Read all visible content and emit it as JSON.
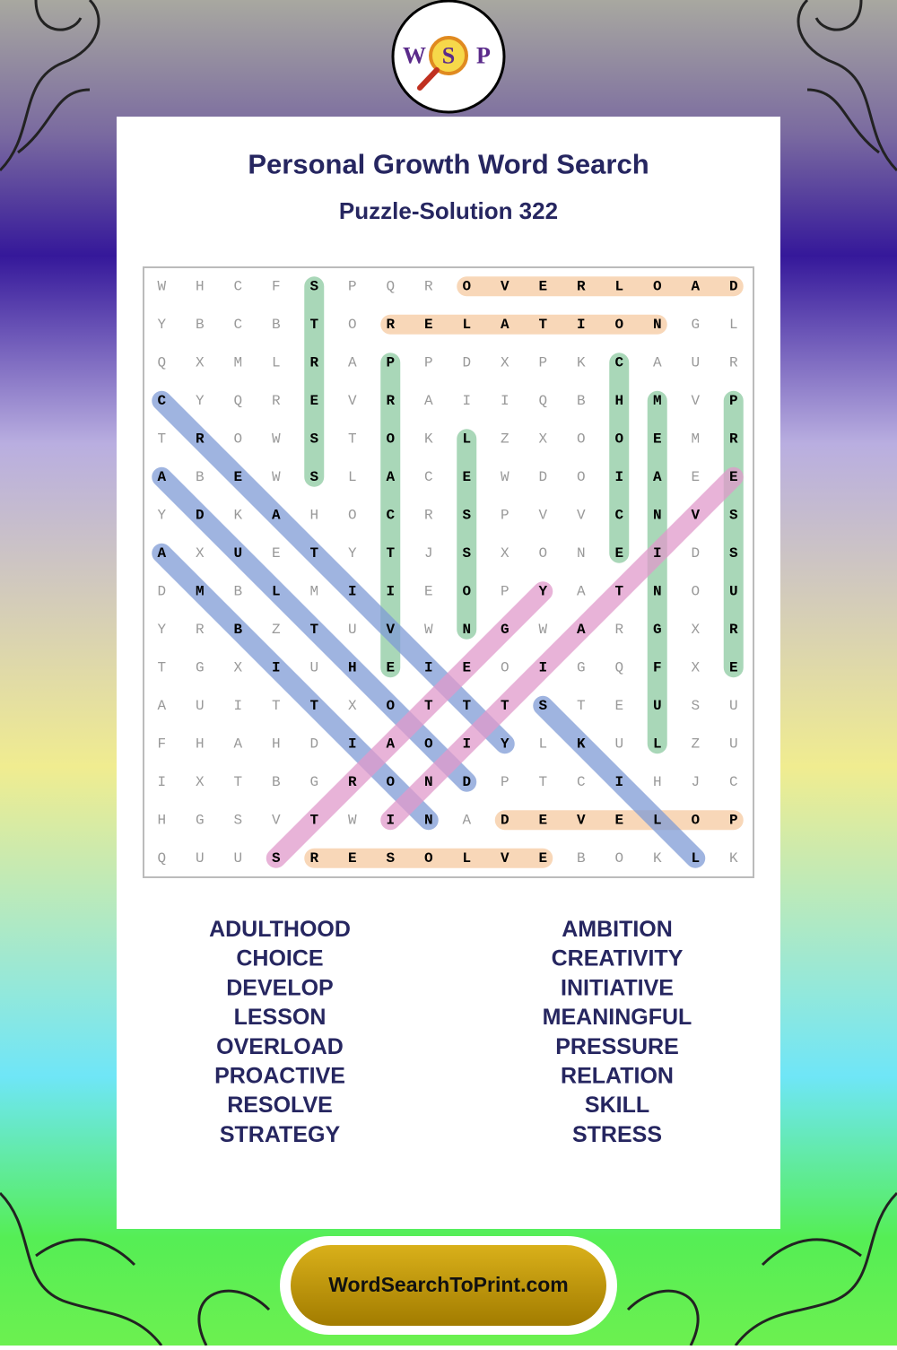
{
  "header": {
    "logo": [
      "W",
      "S",
      "P"
    ],
    "title": "Personal Growth Word Search",
    "subtitle": "Puzzle-Solution 322"
  },
  "grid": {
    "rows": [
      "WHCFSPQROVERLOAD",
      "YBCBTORELATIONGL",
      "QXMLRAPPDXPKCAUR",
      "CYQREVRAIIQBHMVP",
      "TROWSTOKLZXOOEMR",
      "ABEWSLACEWDOIAEE",
      "YDKAHOCRSPVVCNVS",
      "AXUETYTJSXONEIDS",
      "DMBLMIIEOPYATNOU",
      "YRBZTUVWNGWARGXR",
      "TGXIUHEIEOIGQFXE",
      "AUITTXOTTTSTEUSU",
      "FHAHDIAOIYLKULZU",
      "IXTBGRONDPTCIHJC",
      "HGSVTWINADEVELOP",
      "QUUSRESOLVEBOKLK"
    ],
    "highlights": [
      {
        "start": [
          0,
          8
        ],
        "end": [
          0,
          15
        ],
        "color": "#f6c9a0"
      },
      {
        "start": [
          1,
          6
        ],
        "end": [
          1,
          13
        ],
        "color": "#f6c9a0"
      },
      {
        "start": [
          14,
          9
        ],
        "end": [
          14,
          15
        ],
        "color": "#f6c9a0"
      },
      {
        "start": [
          15,
          4
        ],
        "end": [
          15,
          10
        ],
        "color": "#f6c9a0"
      },
      {
        "start": [
          0,
          4
        ],
        "end": [
          5,
          4
        ],
        "color": "#8cc9a0"
      },
      {
        "start": [
          2,
          6
        ],
        "end": [
          10,
          6
        ],
        "color": "#8cc9a0"
      },
      {
        "start": [
          4,
          8
        ],
        "end": [
          9,
          8
        ],
        "color": "#8cc9a0"
      },
      {
        "start": [
          2,
          12
        ],
        "end": [
          7,
          12
        ],
        "color": "#8cc9a0"
      },
      {
        "start": [
          3,
          13
        ],
        "end": [
          12,
          13
        ],
        "color": "#8cc9a0"
      },
      {
        "start": [
          3,
          15
        ],
        "end": [
          10,
          15
        ],
        "color": "#8cc9a0"
      },
      {
        "start": [
          5,
          0
        ],
        "end": [
          13,
          8
        ],
        "color": "#7f9bd6"
      },
      {
        "start": [
          3,
          0
        ],
        "end": [
          12,
          9
        ],
        "color": "#7f9bd6"
      },
      {
        "start": [
          7,
          0
        ],
        "end": [
          14,
          7
        ],
        "color": "#7f9bd6"
      },
      {
        "start": [
          11,
          10
        ],
        "end": [
          15,
          14
        ],
        "color": "#7f9bd6"
      },
      {
        "start": [
          15,
          3
        ],
        "end": [
          8,
          10
        ],
        "color": "#e099cb"
      },
      {
        "start": [
          14,
          6
        ],
        "end": [
          5,
          15
        ],
        "color": "#e099cb"
      }
    ]
  },
  "word_list": {
    "left": [
      "ADULTHOOD",
      "CHOICE",
      "DEVELOP",
      "LESSON",
      "OVERLOAD",
      "PROACTIVE",
      "RESOLVE",
      "STRATEGY"
    ],
    "right": [
      "AMBITION",
      "CREATIVITY",
      "INITIATIVE",
      "MEANINGFUL",
      "PRESSURE",
      "RELATION",
      "SKILL",
      "STRESS"
    ]
  },
  "footer": {
    "site": "WordSearchToPrint.com"
  }
}
